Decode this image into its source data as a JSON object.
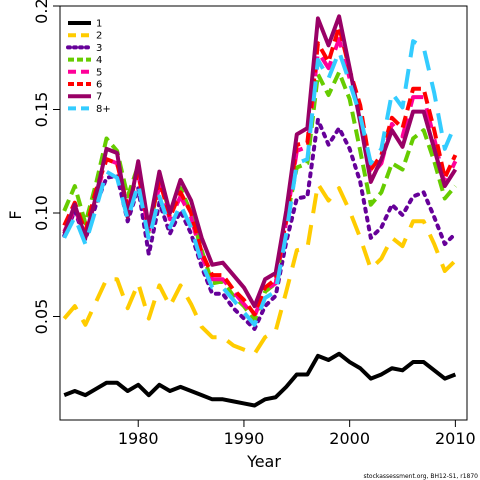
{
  "chart_data": {
    "type": "line",
    "xlabel": "Year",
    "ylabel": "F",
    "xlim": [
      1972.6,
      2011.1
    ],
    "ylim": [
      0,
      0.2
    ],
    "x_ticks": [
      1980,
      1990,
      2000,
      2010
    ],
    "y_ticks": [
      0.05,
      0.1,
      0.15,
      0.2
    ],
    "y_tick_labels": [
      "0.05",
      "0.10",
      "0.15",
      "0.20"
    ],
    "legend_position": "top-left",
    "credit": "stockassessment.org, BH12-S1, r1870",
    "x": [
      1973,
      1974,
      1975,
      1976,
      1977,
      1978,
      1979,
      1980,
      1981,
      1982,
      1983,
      1984,
      1985,
      1986,
      1987,
      1988,
      1989,
      1990,
      1991,
      1992,
      1993,
      1994,
      1995,
      1996,
      1997,
      1998,
      1999,
      2000,
      2001,
      2002,
      2003,
      2004,
      2005,
      2006,
      2007,
      2008,
      2009,
      2010
    ],
    "series": [
      {
        "name": "1",
        "color": "#000000",
        "dash": "solid",
        "values": [
          0.012,
          0.014,
          0.012,
          0.015,
          0.018,
          0.018,
          0.014,
          0.017,
          0.012,
          0.017,
          0.014,
          0.016,
          0.014,
          0.012,
          0.01,
          0.01,
          0.009,
          0.008,
          0.007,
          0.01,
          0.011,
          0.016,
          0.022,
          0.022,
          0.031,
          0.029,
          0.032,
          0.028,
          0.025,
          0.02,
          0.022,
          0.025,
          0.024,
          0.028,
          0.028,
          0.024,
          0.02,
          0.022
        ]
      },
      {
        "name": "2",
        "color": "#FFCC00",
        "dash": "longdash",
        "values": [
          0.049,
          0.055,
          0.046,
          0.057,
          0.068,
          0.068,
          0.054,
          0.066,
          0.049,
          0.065,
          0.055,
          0.065,
          0.056,
          0.045,
          0.04,
          0.04,
          0.036,
          0.034,
          0.032,
          0.04,
          0.043,
          0.062,
          0.082,
          0.083,
          0.114,
          0.106,
          0.112,
          0.101,
          0.088,
          0.073,
          0.078,
          0.088,
          0.084,
          0.096,
          0.096,
          0.085,
          0.072,
          0.077
        ]
      },
      {
        "name": "3",
        "color": "#660099",
        "dash": "dotted",
        "values": [
          0.089,
          0.101,
          0.087,
          0.104,
          0.117,
          0.118,
          0.096,
          0.112,
          0.08,
          0.105,
          0.09,
          0.101,
          0.09,
          0.074,
          0.061,
          0.061,
          0.054,
          0.049,
          0.044,
          0.055,
          0.06,
          0.086,
          0.107,
          0.108,
          0.145,
          0.133,
          0.141,
          0.131,
          0.115,
          0.088,
          0.093,
          0.104,
          0.099,
          0.108,
          0.11,
          0.098,
          0.085,
          0.09
        ]
      },
      {
        "name": "4",
        "color": "#66CC00",
        "dash": "dashed",
        "values": [
          0.101,
          0.113,
          0.095,
          0.114,
          0.136,
          0.13,
          0.108,
          0.123,
          0.09,
          0.117,
          0.1,
          0.112,
          0.1,
          0.082,
          0.066,
          0.067,
          0.06,
          0.055,
          0.048,
          0.062,
          0.066,
          0.096,
          0.122,
          0.124,
          0.167,
          0.157,
          0.168,
          0.155,
          0.13,
          0.104,
          0.11,
          0.124,
          0.121,
          0.136,
          0.14,
          0.125,
          0.107,
          0.113
        ]
      },
      {
        "name": "5",
        "color": "#FF0099",
        "dash": "longdash",
        "values": [
          0.091,
          0.102,
          0.089,
          0.108,
          0.126,
          0.124,
          0.102,
          0.119,
          0.091,
          0.113,
          0.097,
          0.108,
          0.098,
          0.079,
          0.068,
          0.068,
          0.062,
          0.056,
          0.05,
          0.063,
          0.066,
          0.096,
          0.13,
          0.132,
          0.178,
          0.17,
          0.184,
          0.165,
          0.147,
          0.118,
          0.124,
          0.143,
          0.137,
          0.156,
          0.156,
          0.136,
          0.114,
          0.125
        ]
      },
      {
        "name": "6",
        "color": "#FF0000",
        "dash": "dashed",
        "values": [
          0.094,
          0.105,
          0.091,
          0.111,
          0.126,
          0.124,
          0.103,
          0.12,
          0.092,
          0.116,
          0.098,
          0.11,
          0.1,
          0.081,
          0.07,
          0.07,
          0.063,
          0.058,
          0.051,
          0.064,
          0.068,
          0.097,
          0.133,
          0.134,
          0.182,
          0.173,
          0.19,
          0.169,
          0.152,
          0.121,
          0.128,
          0.146,
          0.141,
          0.16,
          0.16,
          0.14,
          0.117,
          0.128
        ]
      },
      {
        "name": "7",
        "color": "#990066",
        "dash": "solid",
        "values": [
          0.09,
          0.104,
          0.088,
          0.108,
          0.131,
          0.129,
          0.098,
          0.125,
          0.093,
          0.12,
          0.1,
          0.116,
          0.106,
          0.088,
          0.075,
          0.076,
          0.07,
          0.064,
          0.055,
          0.068,
          0.071,
          0.101,
          0.138,
          0.141,
          0.194,
          0.181,
          0.195,
          0.17,
          0.144,
          0.115,
          0.126,
          0.14,
          0.132,
          0.149,
          0.149,
          0.131,
          0.113,
          0.121
        ]
      },
      {
        "name": "8+",
        "color": "#33CCFF",
        "dash": "longdash",
        "values": [
          0.088,
          0.098,
          0.085,
          0.102,
          0.12,
          0.117,
          0.097,
          0.114,
          0.087,
          0.108,
          0.093,
          0.104,
          0.093,
          0.076,
          0.064,
          0.064,
          0.058,
          0.052,
          0.046,
          0.059,
          0.062,
          0.09,
          0.124,
          0.126,
          0.174,
          0.165,
          0.178,
          0.163,
          0.147,
          0.124,
          0.131,
          0.158,
          0.151,
          0.183,
          0.18,
          0.158,
          0.131,
          0.143
        ]
      }
    ]
  }
}
